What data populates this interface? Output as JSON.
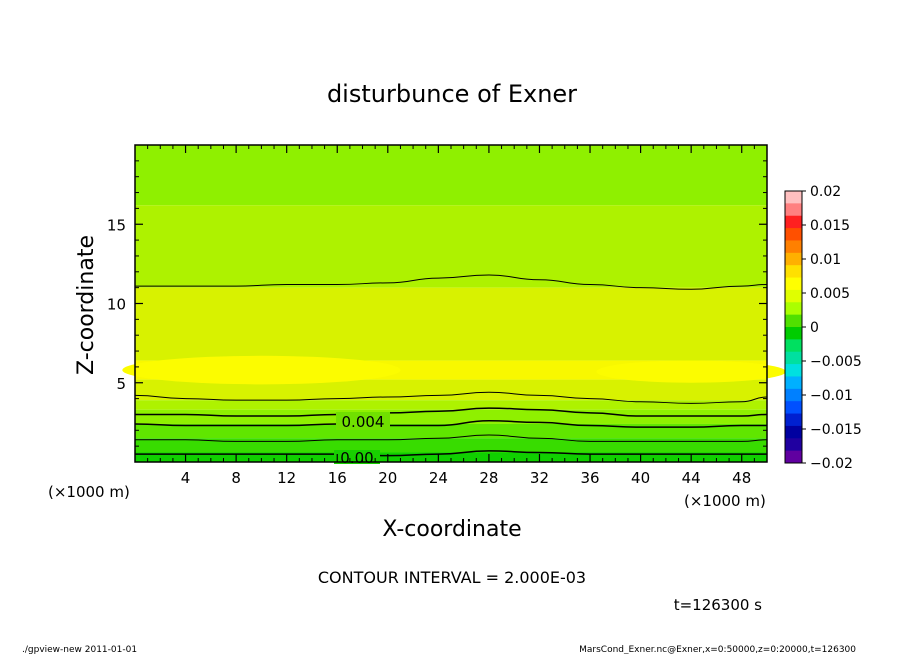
{
  "chart_data": {
    "type": "heatmap",
    "title": "disturbunce of Exner",
    "xlabel": "X-coordinate",
    "ylabel": "Z-coordinate",
    "x_unit": "(×1000 m)",
    "x_unit_right": "(×1000 m)",
    "xlim": [
      0,
      50
    ],
    "ylim": [
      0,
      20
    ],
    "x_ticks": [
      "4",
      "8",
      "12",
      "16",
      "20",
      "24",
      "28",
      "32",
      "36",
      "40",
      "44",
      "48"
    ],
    "x_tick_values": [
      4,
      8,
      12,
      16,
      20,
      24,
      28,
      32,
      36,
      40,
      44,
      48
    ],
    "y_ticks": [
      "5",
      "10",
      "15"
    ],
    "y_tick_values": [
      5,
      10,
      15
    ],
    "colorbar": {
      "labels": [
        "0.02",
        "0.015",
        "0.01",
        "0.005",
        "0",
        "−0.005",
        "−0.01",
        "−0.015",
        "−0.02"
      ],
      "levels": [
        0.02,
        0.015,
        0.01,
        0.005,
        0,
        -0.005,
        -0.01,
        -0.015,
        -0.02
      ],
      "colors": [
        "#ffc0c0",
        "#ff8080",
        "#ff2020",
        "#ff5000",
        "#ff8000",
        "#ffb000",
        "#ffe000",
        "#ffff00",
        "#e0ff00",
        "#aaff00",
        "#50e000",
        "#00cc00",
        "#00e060",
        "#00e0a0",
        "#00e0e0",
        "#00b0ff",
        "#0080ff",
        "#0050ff",
        "#0020d0",
        "#0000a0",
        "#2000a0",
        "#6000a0"
      ]
    },
    "contour_labels": [
      "0.004",
      "0.00"
    ],
    "contour_interval_text": "CONTOUR INTERVAL = 2.000E-03",
    "time_text": "t=126300 s",
    "footer_left": "./gpview-new   2011-01-01",
    "footer_right": "MarsCond_Exner.nc@Exner,x=0:50000,z=0:20000,t=126300",
    "bands": [
      {
        "z_top": 20.0,
        "color": "#8ff000",
        "value_range": [
          0.004,
          0.006
        ]
      },
      {
        "z_top": 16.2,
        "color": "#aef200",
        "value_range": [
          0.006,
          0.008
        ]
      },
      {
        "z_top": 11.0,
        "color": "#d8f200",
        "value_range": [
          0.008,
          0.01
        ]
      },
      {
        "z_top": 6.4,
        "color": "#f8f800",
        "value_range": [
          0.01,
          0.012
        ]
      },
      {
        "z_top": 5.2,
        "color": "#d8f200",
        "value_range": [
          0.008,
          0.01
        ]
      },
      {
        "z_top": 3.9,
        "color": "#aef200",
        "value_range": [
          0.006,
          0.008
        ]
      },
      {
        "z_top": 3.3,
        "color": "#8ff000",
        "value_range": [
          0.004,
          0.006
        ]
      },
      {
        "z_top": 2.4,
        "color": "#60e600",
        "value_range": [
          0.002,
          0.004
        ]
      },
      {
        "z_top": 1.5,
        "color": "#38dc00",
        "value_range": [
          0.0,
          0.002
        ]
      },
      {
        "z_top": 0.6,
        "color": "#10d000",
        "value_range": [
          -0.002,
          0.0
        ]
      }
    ],
    "contours": [
      {
        "z": [
          11.1,
          11.1,
          11.1,
          11.2,
          11.2,
          11.3,
          11.6,
          11.8,
          11.5,
          11.2,
          11.0,
          10.9,
          11.1,
          11.2
        ],
        "width": 1
      },
      {
        "z": [
          4.2,
          4.0,
          3.9,
          3.9,
          4.0,
          4.1,
          4.2,
          4.4,
          4.2,
          4.0,
          3.8,
          3.7,
          3.8,
          4.1
        ],
        "width": 1
      },
      {
        "z": [
          3.0,
          3.0,
          2.9,
          2.9,
          3.0,
          3.1,
          3.2,
          3.4,
          3.3,
          3.1,
          2.9,
          2.9,
          2.9,
          3.0
        ],
        "width": 1.5
      },
      {
        "z": [
          2.4,
          2.3,
          2.3,
          2.3,
          2.4,
          2.3,
          2.3,
          2.6,
          2.5,
          2.3,
          2.2,
          2.2,
          2.3,
          2.3
        ],
        "width": 1.5
      },
      {
        "z": [
          1.4,
          1.4,
          1.3,
          1.3,
          1.4,
          1.4,
          1.5,
          1.7,
          1.5,
          1.3,
          1.3,
          1.3,
          1.3,
          1.4
        ],
        "width": 1
      },
      {
        "z": [
          0.5,
          0.5,
          0.5,
          0.5,
          0.5,
          0.4,
          0.5,
          0.7,
          0.6,
          0.5,
          0.5,
          0.5,
          0.5,
          0.5
        ],
        "width": 1.5
      }
    ],
    "contour_x": [
      0,
      4,
      8,
      12,
      16,
      20,
      24,
      28,
      32,
      36,
      40,
      44,
      48,
      50
    ],
    "yellow_blobs": [
      {
        "cx": 10,
        "cz": 5.8,
        "rx": 11,
        "rz": 0.9
      },
      {
        "cx": 44,
        "cz": 5.7,
        "rx": 7.5,
        "rz": 0.7
      }
    ],
    "legend_placement": "right",
    "grid": false
  }
}
